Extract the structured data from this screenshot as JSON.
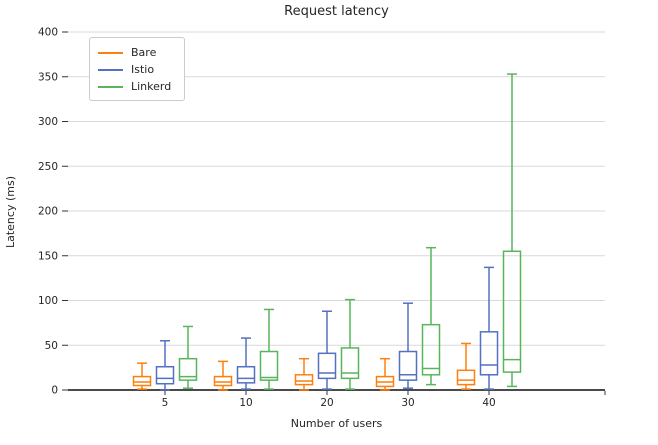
{
  "chart_data": {
    "type": "boxplot",
    "title": "Request latency",
    "xlabel": "Number of users",
    "ylabel": "Latency (ms)",
    "categories": [
      "5",
      "10",
      "20",
      "30",
      "40"
    ],
    "ylim": [
      0,
      400
    ],
    "yticks": [
      0,
      50,
      100,
      150,
      200,
      250,
      300,
      350,
      400
    ],
    "grid": "horizontal",
    "legend_position": "upper left",
    "background_color": "#ffffff",
    "grid_color": "#d9d9d9",
    "axis_color": "#4a4a4a",
    "text_color": "#262626",
    "series": [
      {
        "name": "Bare",
        "color": "#ff7f0e",
        "boxes": [
          {
            "whislo": 1,
            "q1": 5,
            "med": 9,
            "q3": 15,
            "whishi": 30
          },
          {
            "whislo": 0,
            "q1": 5,
            "med": 9,
            "q3": 15,
            "whishi": 32
          },
          {
            "whislo": 0,
            "q1": 6,
            "med": 10,
            "q3": 17,
            "whishi": 35
          },
          {
            "whislo": 0,
            "q1": 4,
            "med": 9,
            "q3": 15,
            "whishi": 35
          },
          {
            "whislo": 1,
            "q1": 6,
            "med": 11,
            "q3": 22,
            "whishi": 52
          }
        ]
      },
      {
        "name": "Istio",
        "color": "#5470c0",
        "boxes": [
          {
            "whislo": 0,
            "q1": 7,
            "med": 13,
            "q3": 26,
            "whishi": 55
          },
          {
            "whislo": 1,
            "q1": 8,
            "med": 13,
            "q3": 26,
            "whishi": 58
          },
          {
            "whislo": 1,
            "q1": 13,
            "med": 19,
            "q3": 41,
            "whishi": 88
          },
          {
            "whislo": 2,
            "q1": 11,
            "med": 17,
            "q3": 43,
            "whishi": 97
          },
          {
            "whislo": 1,
            "q1": 17,
            "med": 28,
            "q3": 65,
            "whishi": 137
          }
        ]
      },
      {
        "name": "Linkerd",
        "color": "#58b55c",
        "boxes": [
          {
            "whislo": 2,
            "q1": 11,
            "med": 15,
            "q3": 35,
            "whishi": 71
          },
          {
            "whislo": 1,
            "q1": 11,
            "med": 14,
            "q3": 43,
            "whishi": 90
          },
          {
            "whislo": 1,
            "q1": 13,
            "med": 19,
            "q3": 47,
            "whishi": 101
          },
          {
            "whislo": 6,
            "q1": 17,
            "med": 24,
            "q3": 73,
            "whishi": 159
          },
          {
            "whislo": 4,
            "q1": 20,
            "med": 34,
            "q3": 155,
            "whishi": 353
          }
        ]
      }
    ]
  }
}
